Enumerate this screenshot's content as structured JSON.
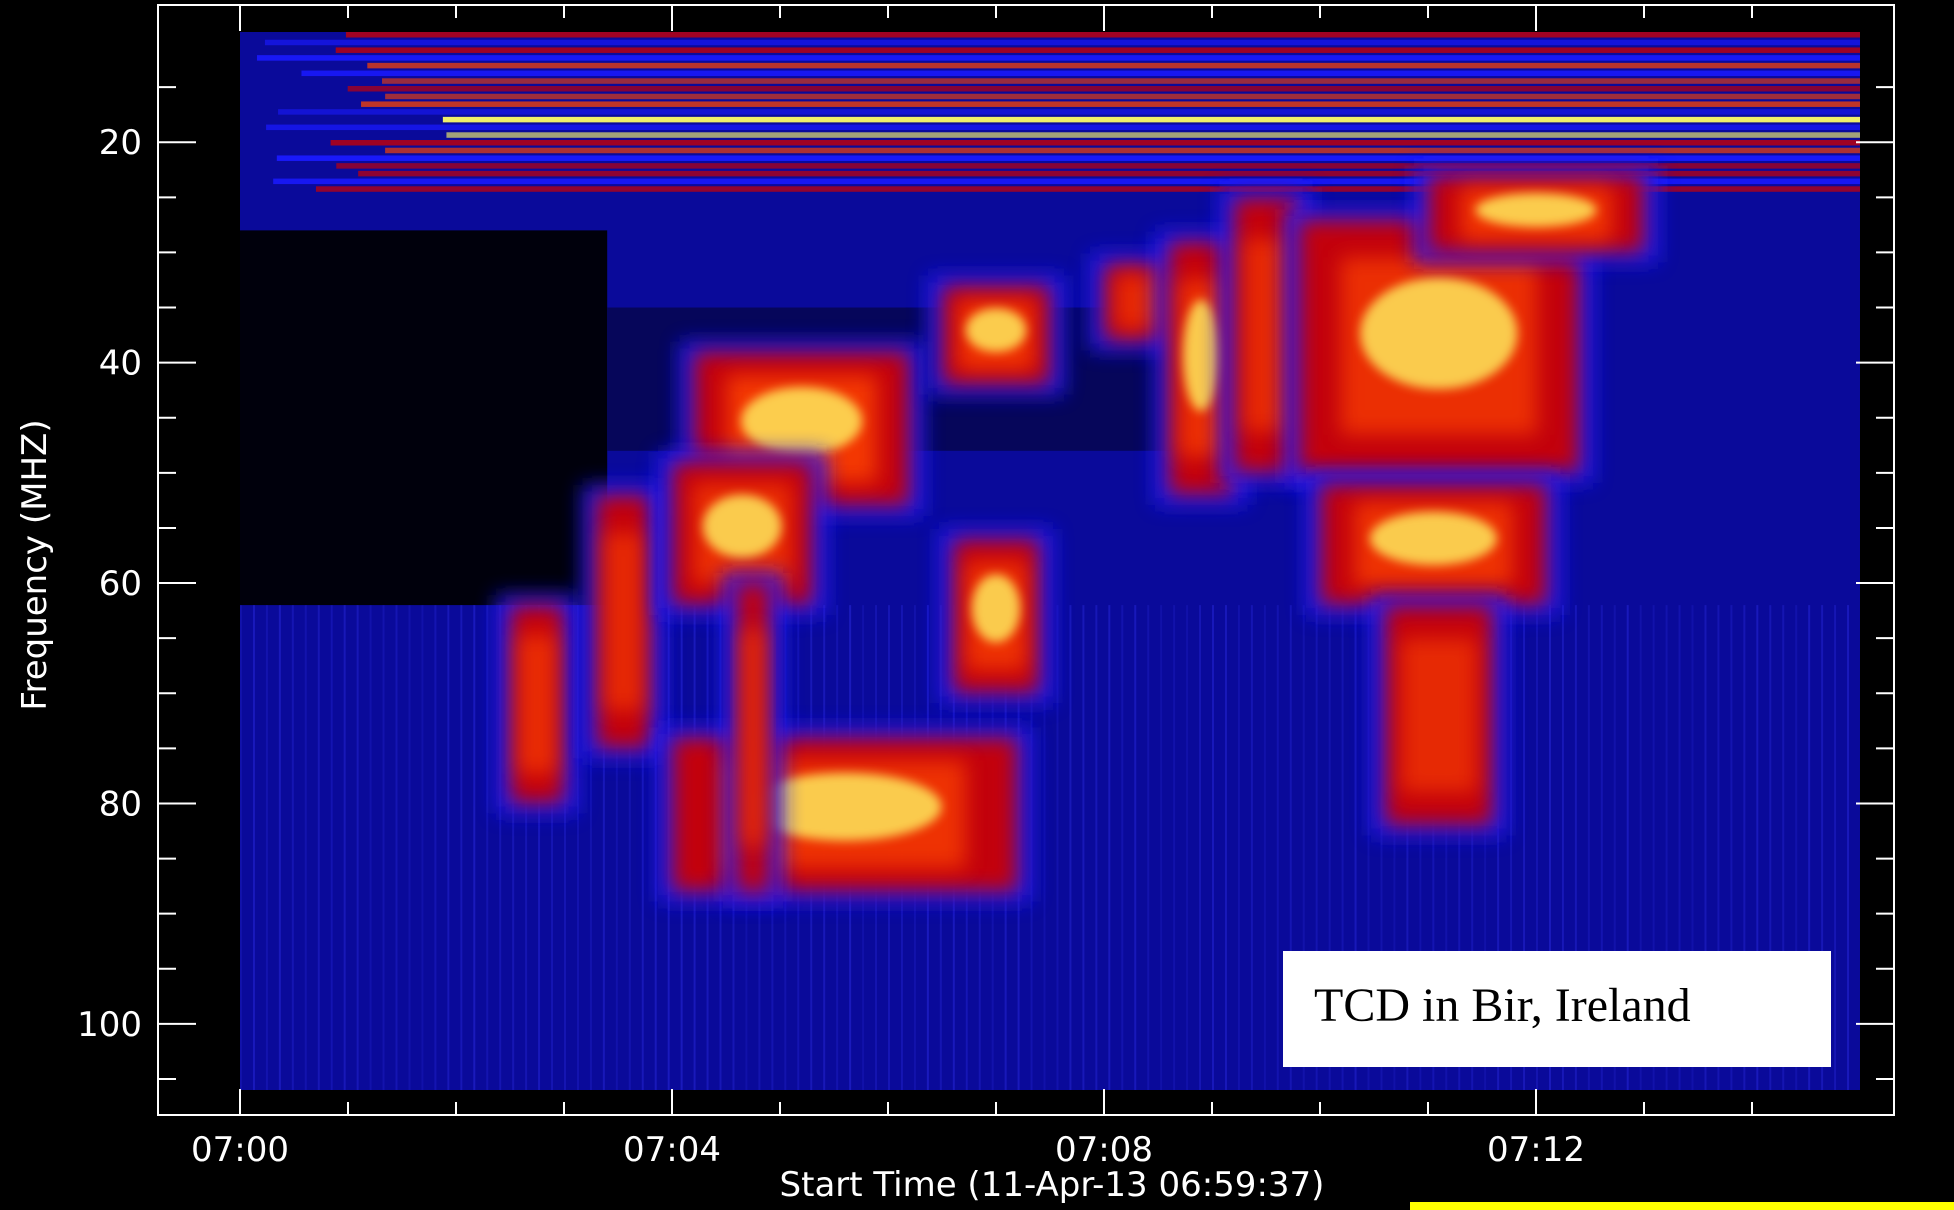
{
  "chart_data": {
    "type": "heatmap",
    "title": "",
    "xlabel": "Start Time (11-Apr-13 06:59:37)",
    "ylabel": "Frequency (MHZ)",
    "xlim_minutes": [
      0,
      15
    ],
    "ylim": [
      10,
      106
    ],
    "y_inverted": true,
    "x_ticks": [
      {
        "minute": 0,
        "label": "07:00"
      },
      {
        "minute": 4,
        "label": "07:04"
      },
      {
        "minute": 8,
        "label": "07:08"
      },
      {
        "minute": 12,
        "label": "07:12"
      }
    ],
    "x_minor_tick_minutes": [
      1,
      2,
      3,
      5,
      6,
      7,
      9,
      10,
      11,
      13,
      14
    ],
    "y_ticks": [
      {
        "value": 20,
        "label": "20"
      },
      {
        "value": 40,
        "label": "40"
      },
      {
        "value": 60,
        "label": "60"
      },
      {
        "value": 80,
        "label": "80"
      },
      {
        "value": 100,
        "label": "100"
      }
    ],
    "y_minor_ticks": [
      15,
      25,
      30,
      35,
      45,
      50,
      55,
      65,
      70,
      75,
      85,
      90,
      95,
      105
    ],
    "colormap": [
      "#000000",
      "#1a1aff",
      "#cc0000",
      "#ff4400",
      "#ff9900",
      "#ffff66"
    ],
    "annotation": "TCD in Bir, Ireland",
    "bursts": [
      {
        "t0": 2.5,
        "t1": 3.0,
        "f0": 62,
        "f1": 80,
        "intensity": 0.75
      },
      {
        "t0": 3.3,
        "t1": 3.8,
        "f0": 52,
        "f1": 75,
        "intensity": 0.7
      },
      {
        "t0": 4.2,
        "t1": 6.2,
        "f0": 39,
        "f1": 53,
        "intensity": 0.95
      },
      {
        "t0": 4.0,
        "t1": 5.3,
        "f0": 49,
        "f1": 62,
        "intensity": 0.8
      },
      {
        "t0": 4.0,
        "t1": 7.2,
        "f0": 74,
        "f1": 88,
        "intensity": 0.85
      },
      {
        "t0": 4.6,
        "t1": 4.9,
        "f0": 60,
        "f1": 88,
        "intensity": 0.7
      },
      {
        "t0": 6.5,
        "t1": 7.5,
        "f0": 33,
        "f1": 42,
        "intensity": 0.9
      },
      {
        "t0": 6.6,
        "t1": 7.4,
        "f0": 56,
        "f1": 70,
        "intensity": 0.85
      },
      {
        "t0": 8.0,
        "t1": 8.7,
        "f0": 31,
        "f1": 38,
        "intensity": 0.7
      },
      {
        "t0": 8.6,
        "t1": 9.2,
        "f0": 29,
        "f1": 52,
        "intensity": 0.8
      },
      {
        "t0": 9.2,
        "t1": 9.8,
        "f0": 25,
        "f1": 50,
        "intensity": 0.7
      },
      {
        "t0": 9.8,
        "t1": 12.4,
        "f0": 27,
        "f1": 50,
        "intensity": 0.8
      },
      {
        "t0": 10.0,
        "t1": 12.1,
        "f0": 51,
        "f1": 62,
        "intensity": 0.85
      },
      {
        "t0": 10.6,
        "t1": 11.6,
        "f0": 62,
        "f1": 82,
        "intensity": 0.7
      },
      {
        "t0": 11.0,
        "t1": 13.0,
        "f0": 23,
        "f1": 30,
        "intensity": 0.9
      }
    ]
  }
}
